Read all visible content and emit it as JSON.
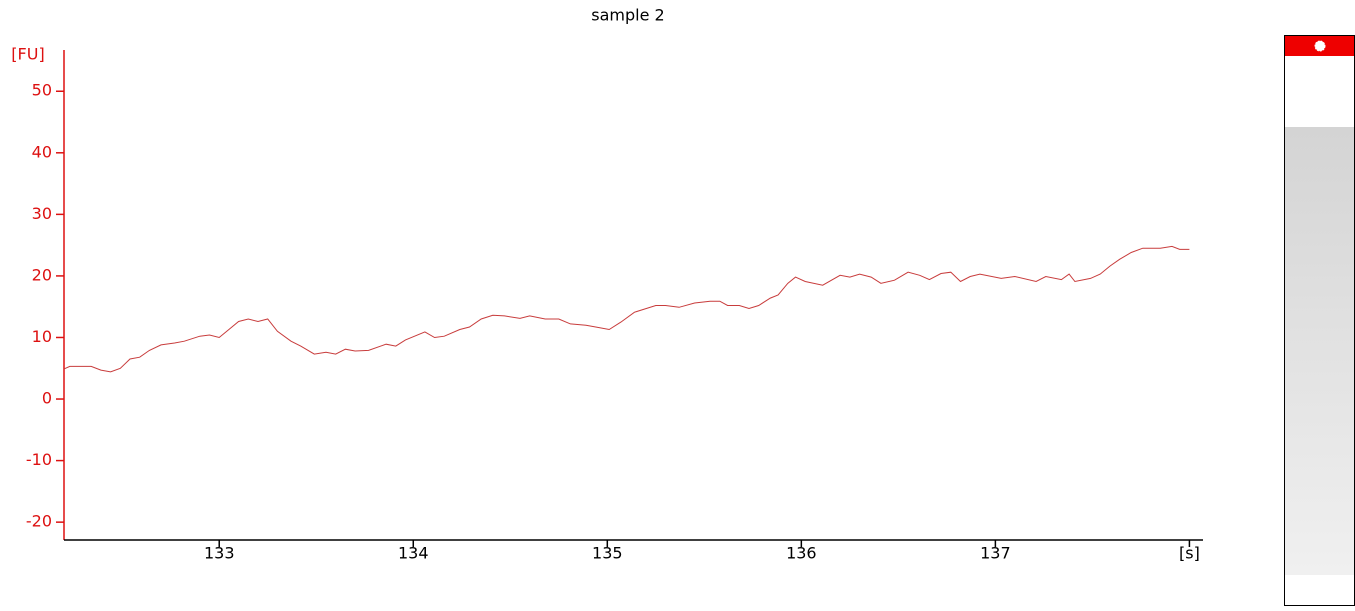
{
  "chart_data": {
    "type": "line",
    "title": "sample 2",
    "y_label": "[FU]",
    "x": [
      132.2,
      132.23,
      132.34,
      132.39,
      132.44,
      132.49,
      132.54,
      132.59,
      132.64,
      132.7,
      132.77,
      132.82,
      132.9,
      132.95,
      133.0,
      133.05,
      133.1,
      133.15,
      133.2,
      133.25,
      133.3,
      133.37,
      133.42,
      133.49,
      133.55,
      133.6,
      133.65,
      133.7,
      133.77,
      133.86,
      133.91,
      133.96,
      134.06,
      134.11,
      134.16,
      134.24,
      134.29,
      134.35,
      134.41,
      134.47,
      134.55,
      134.6,
      134.68,
      134.75,
      134.81,
      134.89,
      134.94,
      135.01,
      135.07,
      135.14,
      135.25,
      135.3,
      135.37,
      135.45,
      135.53,
      135.58,
      135.62,
      135.68,
      135.73,
      135.78,
      135.84,
      135.88,
      135.93,
      135.97,
      136.02,
      136.11,
      136.2,
      136.25,
      136.3,
      136.36,
      136.41,
      136.48,
      136.55,
      136.61,
      136.66,
      136.72,
      136.77,
      136.82,
      136.87,
      136.92,
      137.03,
      137.1,
      137.21,
      137.26,
      137.34,
      137.38,
      137.41,
      137.49,
      137.54,
      137.59,
      137.64,
      137.7,
      137.76,
      137.85,
      137.91,
      137.95,
      138.0
    ],
    "series": [
      {
        "color": "#c83c3c",
        "values": [
          4.9,
          5.3,
          5.3,
          4.7,
          4.4,
          5.0,
          6.5,
          6.8,
          7.9,
          8.8,
          9.1,
          9.4,
          10.2,
          10.4,
          10.0,
          11.3,
          12.6,
          13.0,
          12.6,
          13.0,
          11.0,
          9.4,
          8.6,
          7.3,
          7.6,
          7.3,
          8.1,
          7.8,
          7.9,
          8.9,
          8.6,
          9.6,
          10.9,
          10.0,
          10.2,
          11.3,
          11.7,
          13.0,
          13.6,
          13.5,
          13.1,
          13.5,
          13.0,
          13.0,
          12.2,
          12.0,
          11.7,
          11.3,
          12.5,
          14.1,
          15.2,
          15.2,
          14.9,
          15.6,
          15.9,
          15.9,
          15.2,
          15.2,
          14.7,
          15.2,
          16.4,
          16.9,
          18.8,
          19.8,
          19.1,
          18.5,
          20.1,
          19.8,
          20.3,
          19.8,
          18.8,
          19.3,
          20.6,
          20.1,
          19.4,
          20.4,
          20.6,
          19.1,
          19.9,
          20.3,
          19.6,
          19.9,
          19.1,
          19.9,
          19.4,
          20.3,
          19.1,
          19.6,
          20.3,
          21.6,
          22.7,
          23.8,
          24.5,
          24.5,
          24.8,
          24.3,
          24.3
        ]
      }
    ],
    "xlim": [
      132.2,
      138.07
    ],
    "ylim": [
      -22.9,
      56.7
    ],
    "xticks": [
      133,
      134,
      135,
      136,
      137,
      {
        "value": 138,
        "label": "[s]"
      }
    ],
    "yticks": [
      -20,
      -10,
      0,
      10,
      20,
      30,
      40,
      50
    ],
    "axis_color": "#dd1111"
  }
}
